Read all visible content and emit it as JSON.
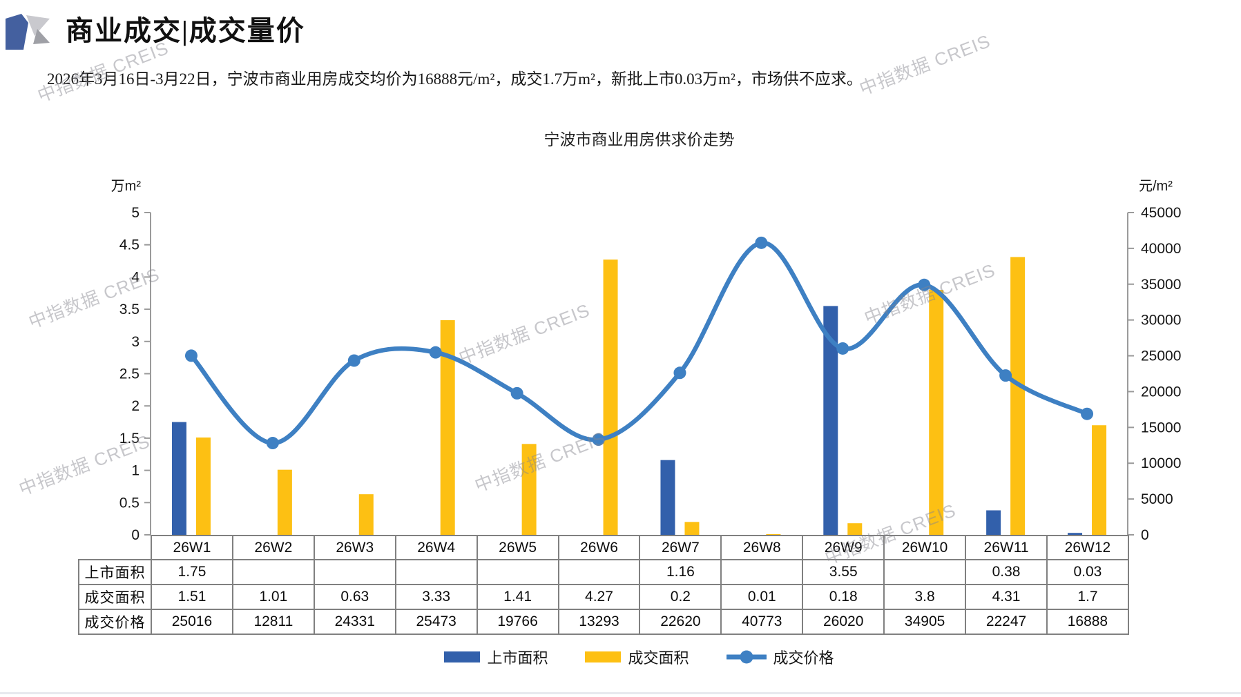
{
  "page": {
    "title": "商业成交|成交量价",
    "subtitle": "2026年3月16日-3月22日，宁波市商业用房成交均价为16888元/m²，成交1.7万m²，新批上市0.03万m²，市场供不应求。",
    "watermark_text": "中指数据 CREIS",
    "colors": {
      "bar_blue": "#3260AB",
      "bar_yellow": "#FDC013",
      "line_blue": "#3E80C3",
      "logo_blue": "#44609F",
      "logo_gray_light": "#C9C9CE",
      "logo_gray_dark": "#9FA0A6"
    }
  },
  "chart_data": {
    "type": "bar+line",
    "title": "宁波市商业用房供求价走势",
    "categories": [
      "26W1",
      "26W2",
      "26W3",
      "26W4",
      "26W5",
      "26W6",
      "26W7",
      "26W8",
      "26W9",
      "26W10",
      "26W11",
      "26W12"
    ],
    "series": [
      {
        "name": "上市面积",
        "type": "bar",
        "axis": "left",
        "color": "#3260AB",
        "values": [
          1.75,
          null,
          null,
          null,
          null,
          null,
          1.16,
          null,
          3.55,
          null,
          0.38,
          0.03
        ]
      },
      {
        "name": "成交面积",
        "type": "bar",
        "axis": "left",
        "color": "#FDC013",
        "values": [
          1.51,
          1.01,
          0.63,
          3.33,
          1.41,
          4.27,
          0.2,
          0.01,
          0.18,
          3.8,
          4.31,
          1.7
        ]
      },
      {
        "name": "成交价格",
        "type": "line",
        "axis": "right",
        "color": "#3E80C3",
        "values": [
          25016,
          12811,
          24331,
          25473,
          19766,
          13293,
          22620,
          40773,
          26020,
          34905,
          22247,
          16888
        ]
      }
    ],
    "left_axis": {
      "label": "万m²",
      "min": 0,
      "max": 5,
      "step": 0.5
    },
    "right_axis": {
      "label": "元/m²",
      "min": 0,
      "max": 45000,
      "step": 5000
    },
    "grid": false,
    "legend_position": "bottom"
  },
  "table": {
    "row_labels": [
      "上市面积",
      "成交面积",
      "成交价格"
    ],
    "columns": [
      "26W1",
      "26W2",
      "26W3",
      "26W4",
      "26W5",
      "26W6",
      "26W7",
      "26W8",
      "26W9",
      "26W10",
      "26W11",
      "26W12"
    ],
    "rows": [
      [
        "1.75",
        "",
        "",
        "",
        "",
        "",
        "1.16",
        "",
        "3.55",
        "",
        "0.38",
        "0.03"
      ],
      [
        "1.51",
        "1.01",
        "0.63",
        "3.33",
        "1.41",
        "4.27",
        "0.2",
        "0.01",
        "0.18",
        "3.8",
        "4.31",
        "1.7"
      ],
      [
        "25016",
        "12811",
        "24331",
        "25473",
        "19766",
        "13293",
        "22620",
        "40773",
        "26020",
        "34905",
        "22247",
        "16888"
      ]
    ]
  }
}
